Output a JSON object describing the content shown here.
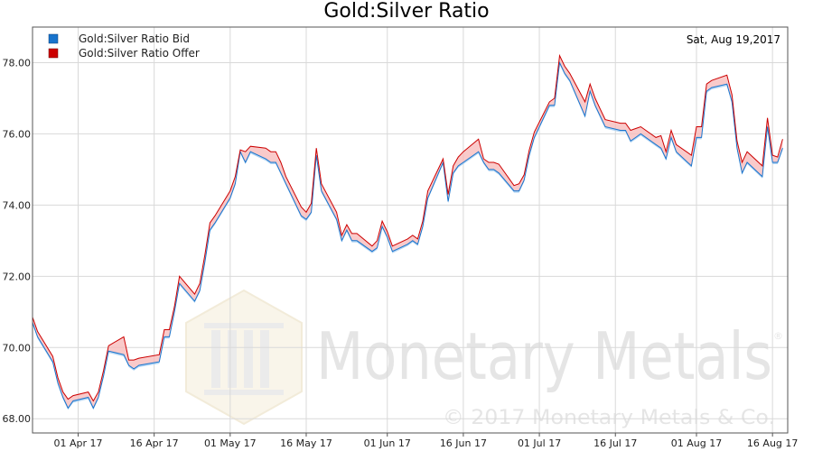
{
  "chart_data": {
    "type": "line",
    "title": "Gold:Silver Ratio",
    "date_label": "Sat, Aug 19,2017",
    "legend_placement": "top-left",
    "grid": true,
    "ylim": [
      67.6,
      79.0
    ],
    "xlim": [
      "2017-03-23",
      "2017-08-19"
    ],
    "y_ticks": [
      "68.00",
      "70.00",
      "72.00",
      "74.00",
      "76.00",
      "78.00"
    ],
    "x_ticks": [
      {
        "date": "2017-04-01",
        "label": "01 Apr 17"
      },
      {
        "date": "2017-04-16",
        "label": "16 Apr 17"
      },
      {
        "date": "2017-05-01",
        "label": "01 May 17"
      },
      {
        "date": "2017-05-16",
        "label": "16 May 17"
      },
      {
        "date": "2017-06-01",
        "label": "01 Jun 17"
      },
      {
        "date": "2017-06-16",
        "label": "16 Jun 17"
      },
      {
        "date": "2017-07-01",
        "label": "01 Jul 17"
      },
      {
        "date": "2017-07-16",
        "label": "16 Jul 17"
      },
      {
        "date": "2017-08-01",
        "label": "01 Aug 17"
      },
      {
        "date": "2017-08-16",
        "label": "16 Aug 17"
      }
    ],
    "x": [
      "2017-03-23",
      "2017-03-24",
      "2017-03-27",
      "2017-03-28",
      "2017-03-29",
      "2017-03-30",
      "2017-03-31",
      "2017-04-03",
      "2017-04-04",
      "2017-04-05",
      "2017-04-06",
      "2017-04-07",
      "2017-04-10",
      "2017-04-11",
      "2017-04-12",
      "2017-04-13",
      "2017-04-17",
      "2017-04-18",
      "2017-04-19",
      "2017-04-20",
      "2017-04-21",
      "2017-04-24",
      "2017-04-25",
      "2017-04-26",
      "2017-04-27",
      "2017-04-28",
      "2017-05-01",
      "2017-05-02",
      "2017-05-03",
      "2017-05-04",
      "2017-05-05",
      "2017-05-08",
      "2017-05-09",
      "2017-05-10",
      "2017-05-11",
      "2017-05-12",
      "2017-05-15",
      "2017-05-16",
      "2017-05-17",
      "2017-05-18",
      "2017-05-19",
      "2017-05-22",
      "2017-05-23",
      "2017-05-24",
      "2017-05-25",
      "2017-05-26",
      "2017-05-29",
      "2017-05-30",
      "2017-05-31",
      "2017-06-01",
      "2017-06-02",
      "2017-06-05",
      "2017-06-06",
      "2017-06-07",
      "2017-06-08",
      "2017-06-09",
      "2017-06-12",
      "2017-06-13",
      "2017-06-14",
      "2017-06-15",
      "2017-06-16",
      "2017-06-19",
      "2017-06-20",
      "2017-06-21",
      "2017-06-22",
      "2017-06-23",
      "2017-06-26",
      "2017-06-27",
      "2017-06-28",
      "2017-06-29",
      "2017-06-30",
      "2017-07-03",
      "2017-07-04",
      "2017-07-05",
      "2017-07-06",
      "2017-07-07",
      "2017-07-10",
      "2017-07-11",
      "2017-07-12",
      "2017-07-13",
      "2017-07-14",
      "2017-07-17",
      "2017-07-18",
      "2017-07-19",
      "2017-07-20",
      "2017-07-21",
      "2017-07-24",
      "2017-07-25",
      "2017-07-26",
      "2017-07-27",
      "2017-07-28",
      "2017-07-31",
      "2017-08-01",
      "2017-08-02",
      "2017-08-03",
      "2017-08-04",
      "2017-08-07",
      "2017-08-08",
      "2017-08-09",
      "2017-08-10",
      "2017-08-11",
      "2017-08-14",
      "2017-08-15",
      "2017-08-16",
      "2017-08-17",
      "2017-08-18"
    ],
    "series": [
      {
        "name": "Gold:Silver Ratio Bid",
        "color": "#1874CD",
        "values": [
          70.7,
          70.3,
          69.6,
          69.0,
          68.6,
          68.3,
          68.5,
          68.6,
          68.3,
          68.6,
          69.2,
          69.9,
          69.8,
          69.5,
          69.4,
          69.5,
          69.6,
          70.3,
          70.3,
          71.0,
          71.8,
          71.3,
          71.6,
          72.4,
          73.3,
          73.5,
          74.2,
          74.6,
          75.5,
          75.2,
          75.5,
          75.3,
          75.2,
          75.2,
          74.9,
          74.6,
          73.7,
          73.6,
          73.8,
          75.4,
          74.4,
          73.6,
          73.0,
          73.3,
          73.0,
          73.0,
          72.7,
          72.8,
          73.4,
          73.1,
          72.7,
          72.9,
          73.0,
          72.9,
          73.4,
          74.2,
          75.2,
          74.1,
          74.9,
          75.1,
          75.2,
          75.5,
          75.2,
          75.0,
          75.0,
          74.9,
          74.4,
          74.4,
          74.7,
          75.4,
          75.9,
          76.8,
          76.8,
          78.0,
          77.7,
          77.5,
          76.5,
          77.2,
          76.8,
          76.5,
          76.2,
          76.1,
          76.1,
          75.8,
          75.9,
          76.0,
          75.7,
          75.6,
          75.3,
          75.9,
          75.5,
          75.1,
          75.9,
          75.9,
          77.2,
          77.3,
          77.4,
          76.9,
          75.6,
          74.9,
          75.2,
          74.8,
          76.2,
          75.2,
          75.2,
          75.6
        ]
      },
      {
        "name": "Gold:Silver Ratio Offer",
        "color": "#CC0000",
        "values": [
          70.85,
          70.45,
          69.75,
          69.15,
          68.75,
          68.55,
          68.65,
          68.75,
          68.5,
          68.75,
          69.35,
          70.05,
          70.3,
          69.65,
          69.65,
          69.7,
          69.8,
          70.5,
          70.5,
          71.15,
          72.0,
          71.5,
          71.8,
          72.6,
          73.5,
          73.7,
          74.4,
          74.8,
          75.55,
          75.5,
          75.65,
          75.6,
          75.5,
          75.5,
          75.2,
          74.8,
          73.95,
          73.8,
          74.05,
          75.6,
          74.6,
          73.8,
          73.15,
          73.45,
          73.2,
          73.2,
          72.85,
          73.0,
          73.55,
          73.25,
          72.85,
          73.05,
          73.15,
          73.05,
          73.55,
          74.4,
          75.3,
          74.3,
          75.1,
          75.35,
          75.5,
          75.85,
          75.3,
          75.2,
          75.2,
          75.15,
          74.55,
          74.6,
          74.85,
          75.55,
          76.05,
          76.9,
          77.0,
          78.2,
          77.9,
          77.7,
          76.9,
          77.4,
          77.0,
          76.7,
          76.4,
          76.3,
          76.3,
          76.1,
          76.15,
          76.2,
          75.9,
          75.95,
          75.5,
          76.1,
          75.7,
          75.4,
          76.2,
          76.2,
          77.4,
          77.5,
          77.65,
          77.1,
          75.8,
          75.2,
          75.5,
          75.1,
          76.45,
          75.4,
          75.35,
          75.85
        ]
      }
    ]
  },
  "watermark": {
    "brand": "Monetary Metals",
    "registered": "®",
    "copyright": "© 2017 Monetary Metals & Co."
  }
}
